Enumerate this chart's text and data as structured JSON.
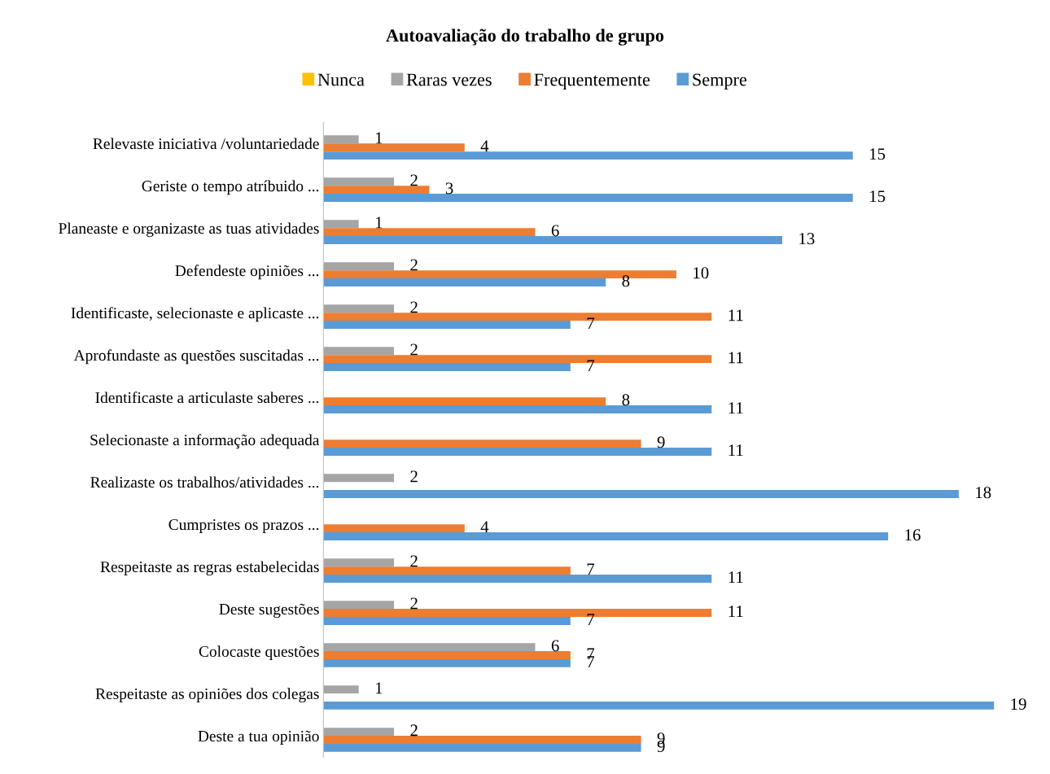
{
  "chart_data": {
    "type": "bar",
    "orientation": "horizontal",
    "title": "Autoavaliação do trabalho de grupo",
    "categories": [
      "Relevaste iniciativa /voluntariedade",
      "Geriste o tempo atríbuido ...",
      "Planeaste e organizaste as tuas atividades",
      "Defendeste opiniões ...",
      "Identificaste, selecionaste e aplicaste ...",
      "Aprofundaste as questões suscitadas ...",
      "Identificaste a articulaste saberes ...",
      "Selecionaste a informação adequada",
      "Realizaste os trabalhos/atividades ...",
      "Cumpristes os prazos ...",
      "Respeitaste as regras estabelecidas",
      "Deste sugestões",
      "Colocaste questões",
      "Respeitaste as opiniões dos colegas",
      "Deste a tua opinião"
    ],
    "series": [
      {
        "name": "Nunca",
        "color": "#ffc000",
        "values": [
          null,
          null,
          null,
          null,
          null,
          null,
          null,
          null,
          null,
          null,
          null,
          null,
          null,
          null,
          null
        ]
      },
      {
        "name": "Raras vezes",
        "color": "#a5a5a5",
        "values": [
          1,
          2,
          1,
          2,
          2,
          2,
          null,
          null,
          2,
          null,
          2,
          2,
          6,
          1,
          2
        ]
      },
      {
        "name": "Frequentemente",
        "color": "#ed7d31",
        "values": [
          4,
          3,
          6,
          10,
          11,
          11,
          8,
          9,
          null,
          4,
          7,
          11,
          7,
          null,
          9
        ]
      },
      {
        "name": "Sempre",
        "color": "#5b9bd5",
        "values": [
          15,
          15,
          13,
          8,
          7,
          7,
          11,
          11,
          18,
          16,
          11,
          7,
          7,
          19,
          9
        ]
      }
    ],
    "data_labels": true,
    "legend": "top",
    "grid": false,
    "tick_labels": "y"
  }
}
